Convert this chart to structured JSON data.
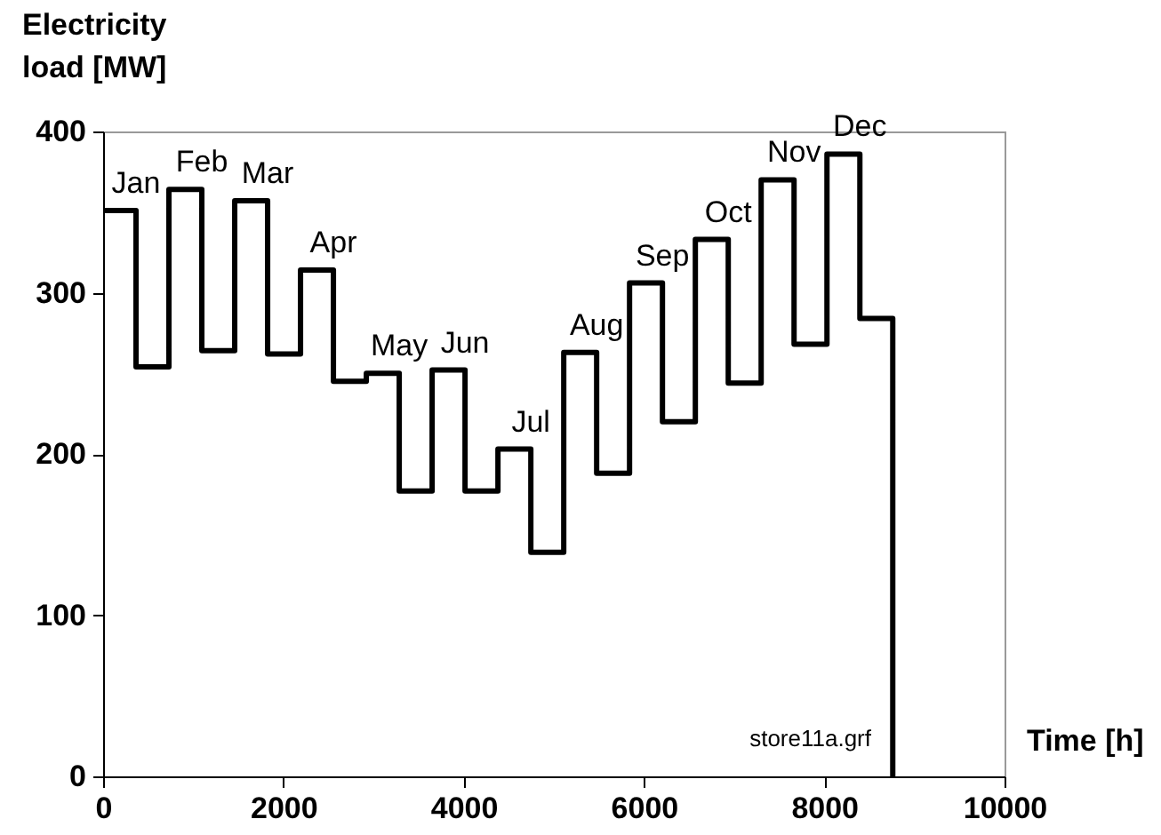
{
  "chart_data": {
    "type": "step",
    "xlabel": "Time [h]",
    "ylabel": "Electricity load [MW]",
    "x": [
      0,
      365,
      730,
      1095,
      1460,
      1825,
      2190,
      2555,
      2920,
      3285,
      3650,
      4015,
      4380,
      4745,
      5110,
      5475,
      5840,
      6205,
      6570,
      6935,
      7300,
      7665,
      8030,
      8395,
      8760
    ],
    "series": [
      {
        "color": "#000000",
        "values": [
          351,
          254,
          364,
          264,
          357,
          262,
          314,
          245,
          250,
          177,
          252,
          177,
          203,
          139,
          263,
          188,
          306,
          220,
          333,
          244,
          370,
          268,
          386,
          284,
          0
        ]
      }
    ],
    "xlim": [
      0,
      10000
    ],
    "xticks": [
      0,
      2000,
      4000,
      6000,
      8000,
      10000
    ],
    "ylim": [
      0,
      400
    ],
    "yticks": [
      0,
      100,
      200,
      300,
      400
    ],
    "grid": false,
    "line_style": "solid",
    "marker": "none",
    "annotations": [
      "Jan",
      "Feb",
      "Mar",
      "Apr",
      "May",
      "Jun",
      "Jul",
      "Aug",
      "Sep",
      "Oct",
      "Nov",
      "Dec",
      "store11a.grf"
    ]
  }
}
